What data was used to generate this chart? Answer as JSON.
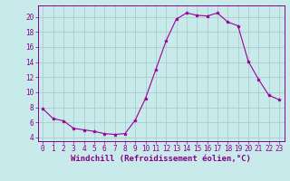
{
  "hours": [
    0,
    1,
    2,
    3,
    4,
    5,
    6,
    7,
    8,
    9,
    10,
    11,
    12,
    13,
    14,
    15,
    16,
    17,
    18,
    19,
    20,
    21,
    22,
    23
  ],
  "windchill": [
    7.8,
    6.5,
    6.2,
    5.2,
    5.0,
    4.8,
    4.5,
    4.4,
    4.5,
    6.3,
    9.2,
    13.0,
    16.8,
    19.7,
    20.5,
    20.2,
    20.1,
    20.5,
    19.3,
    18.8,
    14.1,
    11.7,
    9.6,
    9.0
  ],
  "line_color": "#990099",
  "marker": "*",
  "background_color": "#c8eaea",
  "grid_color": "#aacece",
  "axis_color": "#880088",
  "xlabel": "Windchill (Refroidissement éolien,°C)",
  "ylim": [
    3.5,
    21.5
  ],
  "xlim": [
    -0.5,
    23.5
  ],
  "yticks": [
    4,
    6,
    8,
    10,
    12,
    14,
    16,
    18,
    20
  ],
  "xtick_labels": [
    "0",
    "1",
    "2",
    "3",
    "4",
    "5",
    "6",
    "7",
    "8",
    "9",
    "10",
    "11",
    "12",
    "13",
    "14",
    "15",
    "16",
    "17",
    "18",
    "19",
    "20",
    "21",
    "22",
    "23"
  ],
  "tick_fontsize": 5.5,
  "xlabel_fontsize": 6.5,
  "linewidth": 0.8,
  "markersize": 2.8
}
